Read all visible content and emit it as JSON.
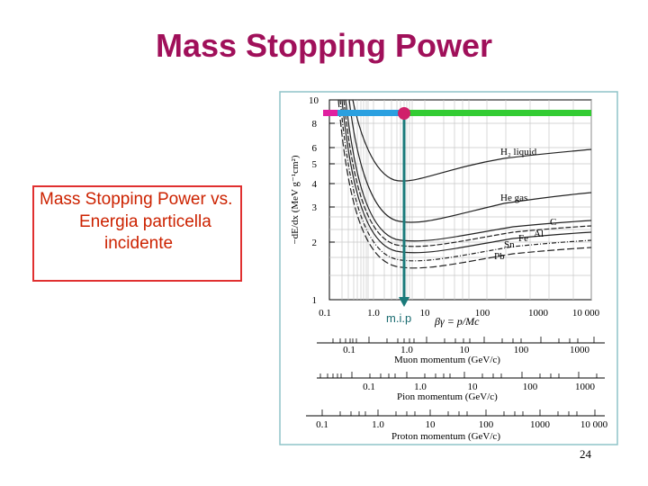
{
  "title": "Mass Stopping Power",
  "textbox": {
    "line1": "Mass Stopping Power vs.",
    "line2": "Energia particella",
    "line3": "incidente"
  },
  "mip_label": "m.i.p",
  "page_number": "24",
  "plot": {
    "y_axis_label": "−dE/dx (MeV g⁻¹cm²)",
    "y_ticks": [
      "1",
      "2",
      "3",
      "4",
      "5",
      "6",
      "8",
      "10"
    ],
    "x_ticks": [
      "0.1",
      "1.0",
      "10",
      "100",
      "1000",
      "10 000"
    ],
    "x_axis_label": "βγ = p/Mc",
    "curve_labels": [
      "H₂ liquid",
      "He gas",
      "C",
      "Al",
      "Fe",
      "Sn",
      "Pb"
    ],
    "scales": [
      {
        "ticks": [
          "0.1",
          "1.0",
          "10",
          "100",
          "1000"
        ],
        "label": "Muon momentum (GeV/c)"
      },
      {
        "ticks": [
          "0.1",
          "1.0",
          "10",
          "100",
          "1000"
        ],
        "label": "Pion momentum (GeV/c)"
      },
      {
        "ticks": [
          "0.1",
          "1.0",
          "10",
          "100",
          "1000",
          "10 000"
        ],
        "label": "Proton momentum (GeV/c)"
      }
    ]
  },
  "colors": {
    "title": "#a0105a",
    "textbox_border": "#e03030",
    "textbox_text": "#cc2200",
    "mip_arrow": "#1a7a7a",
    "bar_blue": "#2aa0e0",
    "bar_green": "#33cc33",
    "bar_magenta": "#e020a0",
    "dot": "#d0206a"
  }
}
